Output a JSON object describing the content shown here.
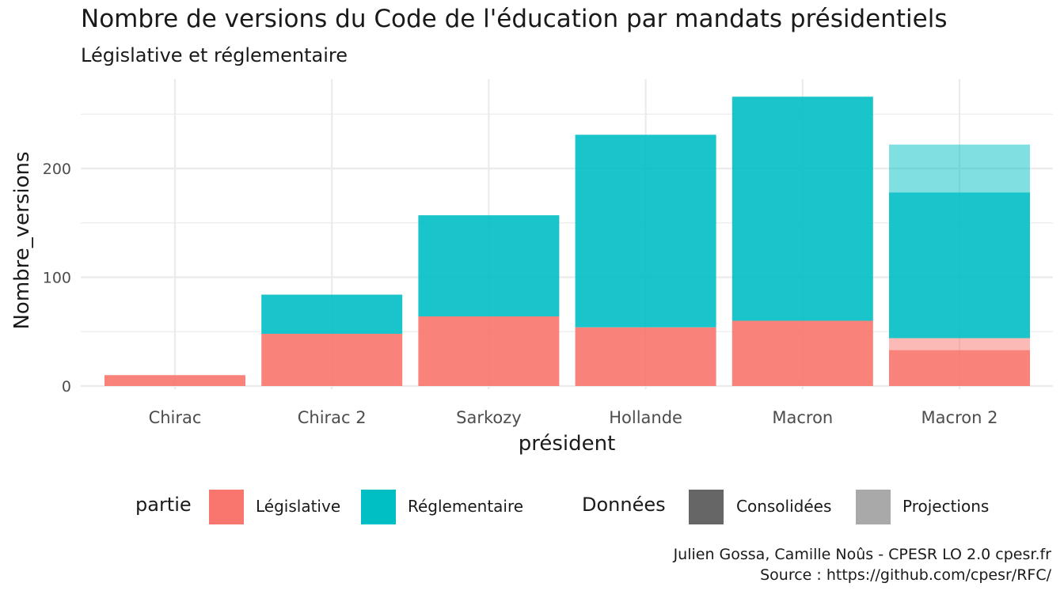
{
  "title": "Nombre de versions du Code de l'éducation par mandats présidentiels",
  "subtitle": "Législative et réglementaire",
  "caption": {
    "line1": "Julien Gossa, Camille Noûs - CPESR LO 2.0 cpesr.fr",
    "line2": "Source : https://github.com/cpesr/RFC/"
  },
  "legend": {
    "partie_title": "partie",
    "legislative_label": "Législative",
    "reglementaire_label": "Réglementaire",
    "donnees_title": "Données",
    "consolidees_label": "Consolidées",
    "projections_label": "Projections"
  },
  "colors": {
    "legislative": "#F8766D",
    "reglementaire": "#00BFC4",
    "consolidees": "#666666",
    "projections": "#a9a9a9",
    "grid": "#ebebeb"
  },
  "chart_data": {
    "type": "bar",
    "stacked": true,
    "xlabel": "président",
    "ylabel": "Nombre_versions",
    "ylim": [
      0,
      275
    ],
    "yticks": [
      0,
      100,
      200
    ],
    "grid": true,
    "legend_position": "bottom",
    "categories": [
      "Chirac",
      "Chirac 2",
      "Sarkozy",
      "Hollande",
      "Macron",
      "Macron 2"
    ],
    "series": [
      {
        "name": "Législative",
        "donnees": "Consolidées",
        "values": [
          10,
          48,
          64,
          54,
          60,
          33
        ]
      },
      {
        "name": "Législative",
        "donnees": "Projections",
        "values": [
          0,
          0,
          0,
          0,
          0,
          11
        ]
      },
      {
        "name": "Réglementaire",
        "donnees": "Consolidées",
        "values": [
          0,
          36,
          93,
          177,
          206,
          134
        ]
      },
      {
        "name": "Réglementaire",
        "donnees": "Projections",
        "values": [
          0,
          0,
          0,
          0,
          0,
          44
        ]
      }
    ]
  }
}
